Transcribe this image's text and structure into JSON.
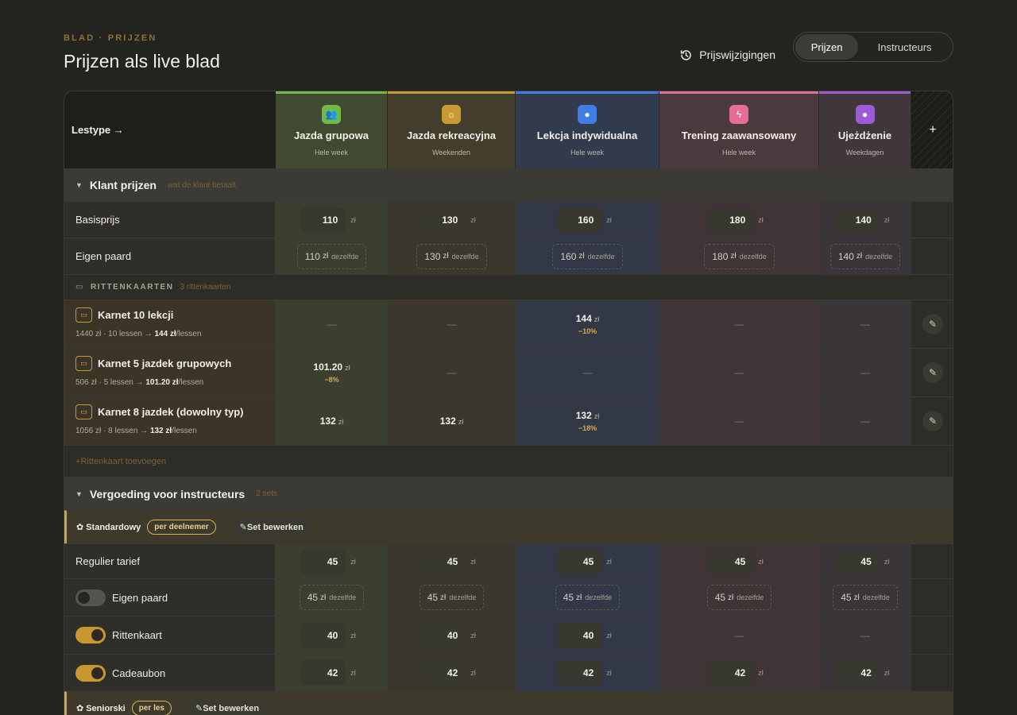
{
  "header": {
    "eyebrow": "BLAD · PRIJZEN",
    "title": "Prijzen als live blad",
    "changes_label": "Prijswijzigingen",
    "segmented": [
      "Prijzen",
      "Instructeurs"
    ]
  },
  "table": {
    "corner_label": "Lestype →",
    "add_column": "+",
    "columns": [
      {
        "name": "Jazda grupowa",
        "sub": "Hele week",
        "accent": "#6fb84a",
        "icon": "users-icon"
      },
      {
        "name": "Jazda rekreacyjna",
        "sub": "Weekenden",
        "accent": "#c99a33",
        "icon": "sun-icon"
      },
      {
        "name": "Lekcja indywidualna",
        "sub": "Hele week",
        "accent": "#3f7de6",
        "icon": "circle-icon"
      },
      {
        "name": "Trening zaawansowany",
        "sub": "Hele week",
        "accent": "#e56d9a",
        "icon": "bolt-icon"
      },
      {
        "name": "Ujeżdżenie",
        "sub": "Weekdagen",
        "accent": "#9b5cd6",
        "icon": "circle-icon"
      }
    ]
  },
  "client_prices": {
    "title": "Klant prijzen",
    "hint": "wat de klant betaalt",
    "basisprijs": {
      "label": "Basisprijs",
      "values": [
        "110",
        "130",
        "160",
        "180",
        "140"
      ],
      "unit": "zł"
    },
    "eigen_paard": {
      "label": "Eigen paard",
      "values": [
        "110",
        "130",
        "160",
        "180",
        "140"
      ],
      "unit": "zł",
      "same": "dezelfde"
    }
  },
  "tickets": {
    "title": "RITTENKAARTEN",
    "hint": "3 rittenkaarten",
    "add_label": "Rittenkaart toevoegen",
    "items": [
      {
        "name": "Karnet 10 lekcji",
        "prefix": "1440 zł · 10 lessen →",
        "per": "144 zł",
        "suffix": "/lessen",
        "cells": [
          null,
          null,
          {
            "v": "144",
            "d": "−10%"
          },
          null,
          null
        ]
      },
      {
        "name": "Karnet 5 jazdek grupowych",
        "prefix": "506 zł · 5 lessen →",
        "per": "101.20 zł",
        "suffix": "/lessen",
        "cells": [
          {
            "v": "101.20",
            "d": "−8%"
          },
          null,
          null,
          null,
          null
        ]
      },
      {
        "name": "Karnet 8 jazdek (dowolny typ)",
        "prefix": "1056 zł · 8 lessen →",
        "per": "132 zł",
        "suffix": "/lessen",
        "cells": [
          {
            "v": "132",
            "d": ""
          },
          {
            "v": "132",
            "d": ""
          },
          {
            "v": "132",
            "d": "−18%"
          },
          null,
          null
        ]
      }
    ]
  },
  "instructors": {
    "title": "Vergoeding voor instructeurs",
    "hint": "2 sets",
    "sets": [
      {
        "name": "Standardowy",
        "pill": "per deelnemer",
        "edit": "Set bewerken"
      },
      {
        "name": "Seniorski",
        "pill": "per les",
        "edit": "Set bewerken"
      }
    ],
    "rows": [
      {
        "label": "Regulier tarief",
        "toggle": null,
        "type": "input",
        "values": [
          "45",
          "45",
          "45",
          "45",
          "45"
        ]
      },
      {
        "label": "Eigen paard",
        "toggle": "off",
        "type": "dashed",
        "values": [
          "45",
          "45",
          "45",
          "45",
          "45"
        ]
      },
      {
        "label": "Rittenkaart",
        "toggle": "on",
        "type": "input",
        "values": [
          "40",
          "40",
          "40",
          null,
          null
        ]
      },
      {
        "label": "Cadeaubon",
        "toggle": "on",
        "type": "input",
        "values": [
          "42",
          "42",
          "42",
          "42",
          "42"
        ]
      }
    ]
  },
  "empty": "—",
  "unit": "zł"
}
